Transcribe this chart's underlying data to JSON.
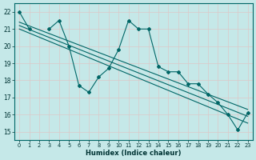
{
  "xlabel": "Humidex (Indice chaleur)",
  "line_color": "#006666",
  "bg_color": "#c5e8e8",
  "grid_color": "#b0d8d8",
  "marker": "D",
  "marker_size": 2.0,
  "line_width": 0.8,
  "xlim": [
    -0.5,
    23.5
  ],
  "ylim": [
    14.5,
    22.5
  ],
  "yticks": [
    15,
    16,
    17,
    18,
    19,
    20,
    21,
    22
  ],
  "xticks": [
    0,
    1,
    2,
    3,
    4,
    5,
    6,
    7,
    8,
    9,
    10,
    11,
    12,
    13,
    14,
    15,
    16,
    17,
    18,
    19,
    20,
    21,
    22,
    23
  ],
  "main_line": [
    22.0,
    21.0,
    null,
    21.0,
    21.5,
    20.0,
    17.7,
    17.3,
    18.2,
    18.7,
    19.8,
    21.5,
    21.0,
    21.0,
    18.8,
    18.5,
    18.5,
    17.8,
    17.8,
    17.2,
    16.7,
    16.0,
    15.1,
    16.1
  ],
  "trend_lines": [
    {
      "x": [
        0,
        23
      ],
      "y": [
        21.0,
        15.5
      ]
    },
    {
      "x": [
        0,
        23
      ],
      "y": [
        21.2,
        15.9
      ]
    },
    {
      "x": [
        0,
        23
      ],
      "y": [
        21.4,
        16.3
      ]
    }
  ]
}
